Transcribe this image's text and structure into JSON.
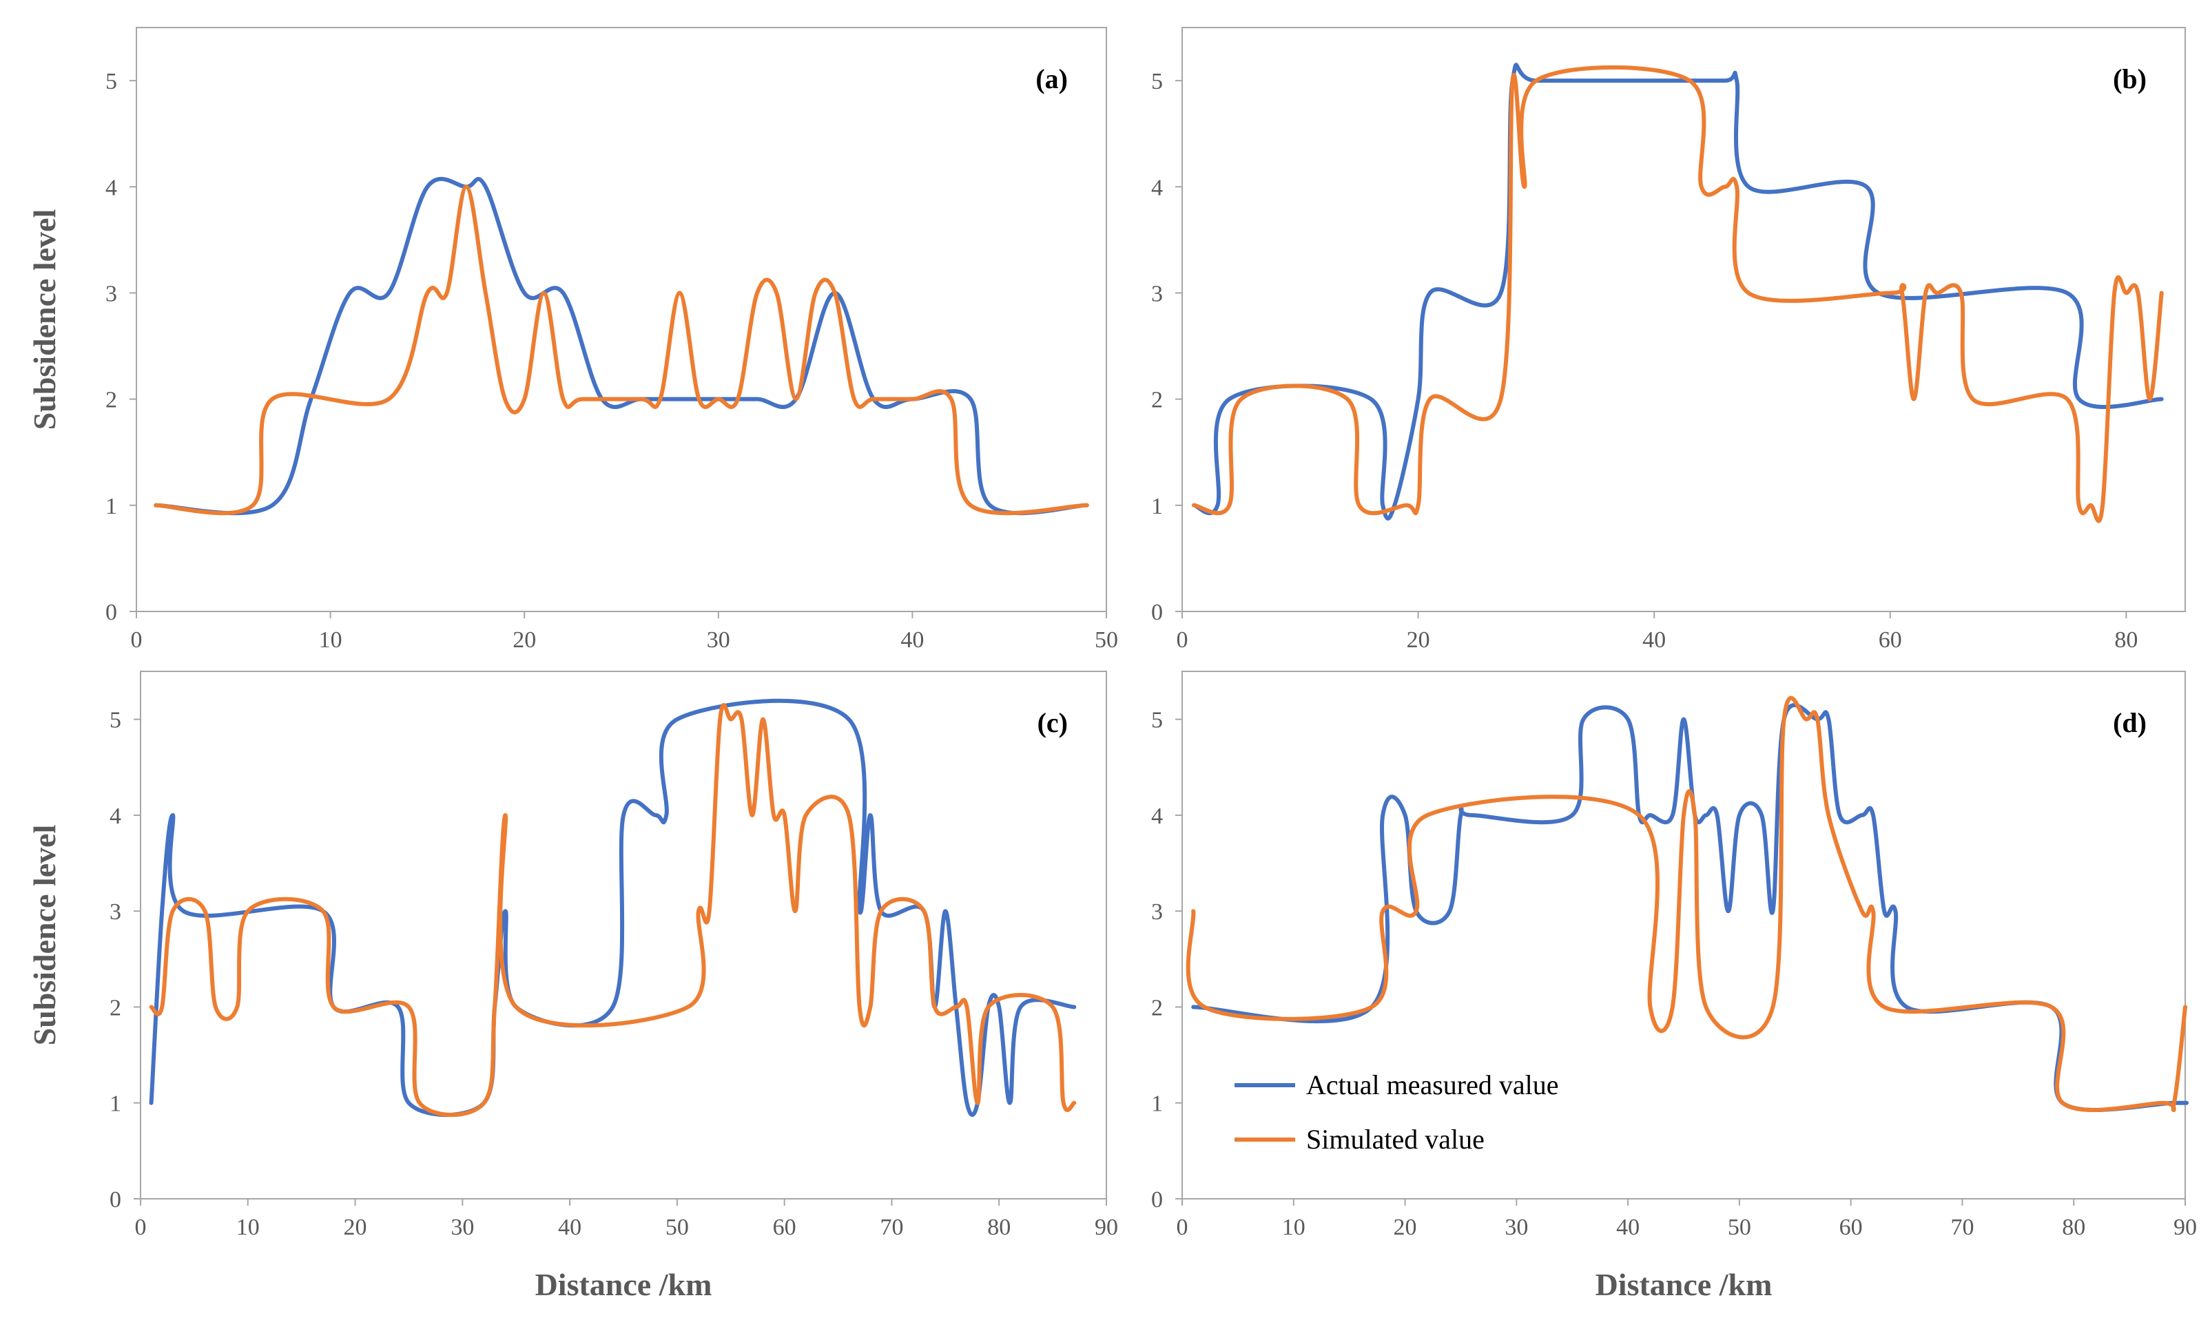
{
  "colors": {
    "actual": "#4472C4",
    "simulated": "#ED7D31",
    "frame": "#a6a6a6",
    "text": "#595959"
  },
  "chart_data": [
    {
      "type": "line",
      "panel_label": "(a)",
      "xlabel": "",
      "ylabel": "Subsidence level",
      "xlim": [
        0,
        50
      ],
      "ylim": [
        0,
        5.5
      ],
      "xticks": [
        0,
        10,
        20,
        30,
        40,
        50
      ],
      "yticks": [
        0,
        1,
        2,
        3,
        4,
        5
      ],
      "series": [
        {
          "name": "Actual measured value",
          "x": [
            1,
            7,
            9,
            11,
            13,
            15,
            17,
            18,
            20,
            22,
            24,
            26,
            28,
            30,
            32,
            34,
            36,
            38,
            40,
            43,
            44,
            49
          ],
          "y": [
            1,
            1,
            2,
            3,
            3,
            4,
            4,
            4,
            3,
            3,
            2,
            2,
            2,
            2,
            2,
            2,
            3,
            2,
            2,
            2,
            1,
            1
          ]
        },
        {
          "name": "Simulated value",
          "x": [
            1,
            6,
            7,
            13,
            15,
            16,
            17,
            18,
            19,
            20,
            21,
            22,
            23,
            26,
            27,
            28,
            29,
            30,
            31,
            32,
            33,
            34,
            35,
            36,
            37,
            38,
            40,
            42,
            43,
            49
          ],
          "y": [
            1,
            1,
            2,
            2,
            3,
            3,
            4,
            3,
            2,
            2,
            3,
            2,
            2,
            2,
            2,
            3,
            2,
            2,
            2,
            3,
            3,
            2,
            3,
            3,
            2,
            2,
            2,
            2,
            1,
            1
          ]
        }
      ]
    },
    {
      "type": "line",
      "panel_label": "(b)",
      "xlabel": "",
      "ylabel": "",
      "xlim": [
        0,
        85
      ],
      "ylim": [
        0,
        5.5
      ],
      "xticks": [
        0,
        20,
        40,
        60,
        80
      ],
      "yticks": [
        0,
        1,
        2,
        3,
        4,
        5
      ],
      "series": [
        {
          "name": "Actual measured value",
          "x": [
            1,
            3,
            4,
            16,
            17,
            18,
            20,
            21,
            27,
            28,
            30,
            40,
            46,
            47,
            48,
            58,
            59,
            75,
            76,
            83
          ],
          "y": [
            1,
            1,
            2,
            2,
            1,
            1,
            2,
            3,
            3,
            5,
            5,
            5,
            5,
            5,
            4,
            4,
            3,
            3,
            2,
            2
          ]
        },
        {
          "name": "Simulated value",
          "x": [
            1,
            4,
            5,
            14,
            15,
            19,
            20,
            21,
            27,
            28,
            29,
            30,
            43,
            44,
            46,
            47,
            48,
            60,
            61,
            62,
            63,
            64,
            66,
            67,
            75,
            76,
            77,
            78,
            79,
            80,
            81,
            82,
            83
          ],
          "y": [
            1,
            1,
            2,
            2,
            1,
            1,
            1,
            2,
            2,
            5,
            4,
            5,
            5,
            4,
            4,
            4,
            3,
            3,
            3,
            2,
            3,
            3,
            3,
            2,
            2,
            1,
            1,
            1,
            3,
            3,
            3,
            2,
            3
          ]
        }
      ]
    },
    {
      "type": "line",
      "panel_label": "(c)",
      "xlabel": "Distance /km",
      "ylabel": "Subsidence level",
      "xlim": [
        0,
        90
      ],
      "ylim": [
        0,
        5.5
      ],
      "xticks": [
        0,
        10,
        20,
        30,
        40,
        50,
        60,
        70,
        80,
        90
      ],
      "yticks": [
        0,
        1,
        2,
        3,
        4,
        5
      ],
      "series": [
        {
          "name": "Actual measured value",
          "x": [
            1,
            2,
            3,
            4,
            17,
            18,
            24,
            25,
            32,
            33,
            34,
            35,
            44,
            45,
            48,
            49,
            50,
            66,
            67,
            68,
            69,
            73,
            74,
            75,
            76,
            77,
            78,
            79,
            80,
            81,
            82,
            87
          ],
          "y": [
            1,
            3,
            4,
            3,
            3,
            2,
            2,
            1,
            1,
            2,
            3,
            2,
            2,
            4,
            4,
            4,
            5,
            5,
            3,
            4,
            3,
            3,
            2,
            3,
            2,
            1,
            1,
            2,
            2,
            1,
            2,
            2
          ]
        },
        {
          "name": "Simulated value",
          "x": [
            1,
            2,
            3,
            6,
            7,
            9,
            10,
            17,
            18,
            25,
            26,
            32,
            33,
            34,
            35,
            51,
            52,
            53,
            54,
            55,
            56,
            57,
            58,
            59,
            60,
            61,
            62,
            66,
            67,
            68,
            69,
            73,
            74,
            76,
            77,
            78,
            79,
            85,
            86,
            87
          ],
          "y": [
            2,
            2,
            3,
            3,
            2,
            2,
            3,
            3,
            2,
            2,
            1,
            1,
            2,
            4,
            2,
            2,
            3,
            3,
            5,
            5,
            5,
            4,
            5,
            4,
            4,
            3,
            4,
            4,
            2,
            2,
            3,
            3,
            2,
            2,
            2,
            1,
            2,
            2,
            1,
            1
          ]
        }
      ]
    },
    {
      "type": "line",
      "panel_label": "(d)",
      "xlabel": "Distance /km",
      "ylabel": "",
      "xlim": [
        0,
        90
      ],
      "ylim": [
        0,
        5.5
      ],
      "xticks": [
        0,
        10,
        20,
        30,
        40,
        50,
        60,
        70,
        80,
        90
      ],
      "yticks": [
        0,
        1,
        2,
        3,
        4,
        5
      ],
      "legend": {
        "position": "bottom-left",
        "entries": [
          "Actual measured value",
          "Simulated value"
        ]
      },
      "series": [
        {
          "name": "Actual measured value",
          "x": [
            1,
            17,
            18,
            20,
            21,
            24,
            25,
            26,
            35,
            36,
            40,
            41,
            42,
            44,
            45,
            46,
            47,
            48,
            49,
            50,
            52,
            53,
            54,
            57,
            58,
            59,
            61,
            62,
            63,
            64,
            65,
            78,
            79,
            89,
            90
          ],
          "y": [
            2,
            2,
            4,
            4,
            3,
            3,
            4,
            4,
            4,
            5,
            5,
            4,
            4,
            4,
            5,
            4,
            4,
            4,
            3,
            4,
            4,
            3,
            5,
            5,
            5,
            4,
            4,
            4,
            3,
            3,
            2,
            2,
            1,
            1,
            1
          ]
        },
        {
          "name": "Simulated value",
          "x": [
            1,
            2,
            17,
            18,
            21,
            22,
            41,
            42,
            44,
            45,
            46,
            47,
            53,
            54,
            56,
            57,
            58,
            61,
            62,
            63,
            78,
            79,
            88,
            89,
            90
          ],
          "y": [
            3,
            2,
            2,
            3,
            3,
            4,
            4,
            2,
            2,
            4,
            4,
            2,
            2,
            5,
            5,
            5,
            4,
            3,
            3,
            2,
            2,
            1,
            1,
            1,
            2
          ]
        }
      ]
    }
  ]
}
